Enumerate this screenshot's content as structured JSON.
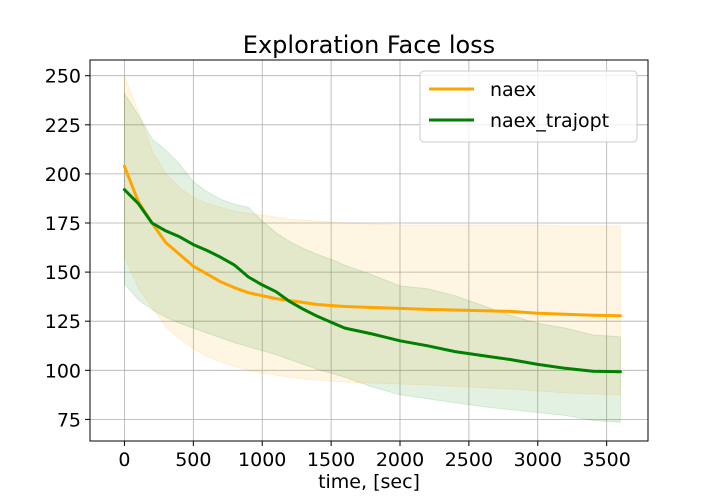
{
  "chart_data": {
    "type": "line",
    "title": "Exploration Face loss",
    "xlabel": "time, [sec]",
    "ylabel": "",
    "xlim": [
      -250,
      3800
    ],
    "ylim": [
      64,
      258
    ],
    "xticks": [
      0,
      500,
      1000,
      1500,
      2000,
      2500,
      3000,
      3500
    ],
    "yticks": [
      75,
      100,
      125,
      150,
      175,
      200,
      225,
      250
    ],
    "grid": true,
    "legend_position": "top-right",
    "series": [
      {
        "name": "naex",
        "color": "#ffa500",
        "x": [
          0,
          100,
          200,
          300,
          400,
          500,
          600,
          700,
          800,
          900,
          1000,
          1100,
          1200,
          1300,
          1400,
          1500,
          1600,
          1800,
          2000,
          2200,
          2500,
          2800,
          3000,
          3200,
          3400,
          3600
        ],
        "y": [
          204,
          186,
          175,
          165,
          159,
          153,
          149,
          145,
          142,
          139.5,
          138,
          136.5,
          135.5,
          134.5,
          133.5,
          133,
          132.5,
          132,
          131.5,
          131,
          130.5,
          130,
          129,
          128.5,
          128,
          127.8
        ],
        "upper": [
          250,
          232,
          212,
          200,
          193,
          188,
          185,
          183,
          181,
          180,
          179,
          178,
          177,
          176.5,
          176,
          175.5,
          175,
          174.5,
          174,
          174,
          174,
          174,
          174,
          173.5,
          173.5,
          173.5
        ],
        "lower": [
          158,
          142,
          132,
          122,
          116,
          111,
          107,
          104,
          102,
          100,
          98.5,
          97.5,
          96.5,
          95.5,
          95,
          94.5,
          94,
          93.5,
          93,
          92.5,
          91.5,
          90.5,
          89.5,
          88.5,
          88,
          87.5
        ]
      },
      {
        "name": "naex_trajopt",
        "color": "#008000",
        "x": [
          0,
          100,
          200,
          300,
          400,
          500,
          600,
          700,
          800,
          900,
          1000,
          1100,
          1200,
          1300,
          1400,
          1500,
          1600,
          1800,
          2000,
          2200,
          2400,
          2600,
          2800,
          3000,
          3200,
          3400,
          3600
        ],
        "y": [
          192,
          185,
          175,
          171,
          168,
          164,
          161,
          157.5,
          153.5,
          147.5,
          143.5,
          140,
          135,
          131,
          127.5,
          124.5,
          121.5,
          118.5,
          115,
          112.5,
          109.5,
          107.5,
          105.5,
          103,
          101,
          99.5,
          99.3
        ],
        "upper": [
          241,
          230,
          218,
          212,
          205,
          196,
          191,
          187,
          184.5,
          183,
          176,
          170,
          165.5,
          162,
          159,
          156.5,
          153.5,
          148.5,
          143,
          141.5,
          138,
          133,
          128,
          124,
          121.5,
          118,
          117
        ],
        "lower": [
          144,
          136,
          131,
          127,
          124,
          121.5,
          119,
          116.5,
          114,
          112,
          110,
          108,
          105.5,
          103,
          100.5,
          98.5,
          96.5,
          91.5,
          87.5,
          85.5,
          83.5,
          81.5,
          80,
          78.5,
          77,
          74.5,
          73.5
        ]
      }
    ]
  }
}
